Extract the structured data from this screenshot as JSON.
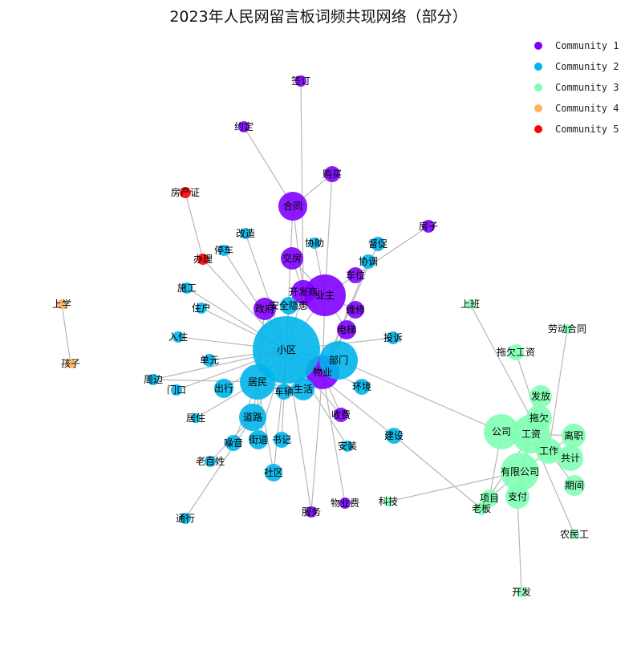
{
  "title": "2023年人民网留言板词频共现网络（部分）",
  "legend": [
    {
      "label": "Community 1",
      "color": "#8000ff"
    },
    {
      "label": "Community 2",
      "color": "#00b5eb"
    },
    {
      "label": "Community 3",
      "color": "#80ffb4"
    },
    {
      "label": "Community 4",
      "color": "#ffb360"
    },
    {
      "label": "Community 5",
      "color": "#ff0000"
    }
  ],
  "nodes": [
    {
      "id": "签订",
      "community": 1
    },
    {
      "id": "约定",
      "community": 1
    },
    {
      "id": "购买",
      "community": 1
    },
    {
      "id": "合同",
      "community": 1
    },
    {
      "id": "房子",
      "community": 1
    },
    {
      "id": "交房",
      "community": 1
    },
    {
      "id": "开发商",
      "community": 1
    },
    {
      "id": "业主",
      "community": 1
    },
    {
      "id": "车位",
      "community": 1
    },
    {
      "id": "政府",
      "community": 1
    },
    {
      "id": "维修",
      "community": 1
    },
    {
      "id": "电梯",
      "community": 1
    },
    {
      "id": "物业",
      "community": 1
    },
    {
      "id": "收费",
      "community": 1
    },
    {
      "id": "服务",
      "community": 1
    },
    {
      "id": "物业费",
      "community": 1
    },
    {
      "id": "房产证",
      "community": 5
    },
    {
      "id": "办理",
      "community": 5
    },
    {
      "id": "上学",
      "community": 4
    },
    {
      "id": "孩子",
      "community": 4
    },
    {
      "id": "改造",
      "community": 2
    },
    {
      "id": "停车",
      "community": 2
    },
    {
      "id": "协助",
      "community": 2
    },
    {
      "id": "督促",
      "community": 2
    },
    {
      "id": "协调",
      "community": 2
    },
    {
      "id": "施工",
      "community": 2
    },
    {
      "id": "住户",
      "community": 2
    },
    {
      "id": "安全隐患",
      "community": 2
    },
    {
      "id": "入住",
      "community": 2
    },
    {
      "id": "投诉",
      "community": 2
    },
    {
      "id": "小区",
      "community": 2
    },
    {
      "id": "单元",
      "community": 2
    },
    {
      "id": "部门",
      "community": 2
    },
    {
      "id": "周边",
      "community": 2
    },
    {
      "id": "门口",
      "community": 2
    },
    {
      "id": "居民",
      "community": 2
    },
    {
      "id": "出行",
      "community": 2
    },
    {
      "id": "车辆",
      "community": 2
    },
    {
      "id": "生活",
      "community": 2
    },
    {
      "id": "环境",
      "community": 2
    },
    {
      "id": "居住",
      "community": 2
    },
    {
      "id": "道路",
      "community": 2
    },
    {
      "id": "噪音",
      "community": 2
    },
    {
      "id": "街道",
      "community": 2
    },
    {
      "id": "书记",
      "community": 2
    },
    {
      "id": "安装",
      "community": 2
    },
    {
      "id": "建设",
      "community": 2
    },
    {
      "id": "老百姓",
      "community": 2
    },
    {
      "id": "社区",
      "community": 2
    },
    {
      "id": "通行",
      "community": 2
    },
    {
      "id": "上班",
      "community": 3
    },
    {
      "id": "劳动合同",
      "community": 3
    },
    {
      "id": "拖欠工资",
      "community": 3
    },
    {
      "id": "发放",
      "community": 3
    },
    {
      "id": "拖欠",
      "community": 3
    },
    {
      "id": "公司",
      "community": 3
    },
    {
      "id": "工资",
      "community": 3
    },
    {
      "id": "离职",
      "community": 3
    },
    {
      "id": "工作",
      "community": 3
    },
    {
      "id": "共计",
      "community": 3
    },
    {
      "id": "有限公司",
      "community": 3
    },
    {
      "id": "期间",
      "community": 3
    },
    {
      "id": "项目",
      "community": 3
    },
    {
      "id": "老板",
      "community": 3
    },
    {
      "id": "支付",
      "community": 3
    },
    {
      "id": "科技",
      "community": 3
    },
    {
      "id": "农民工",
      "community": 3
    },
    {
      "id": "开发",
      "community": 3
    }
  ],
  "edges": [
    [
      "签订",
      "开发商"
    ],
    [
      "约定",
      "合同"
    ],
    [
      "购买",
      "合同"
    ],
    [
      "购买",
      "业主"
    ],
    [
      "合同",
      "开发商"
    ],
    [
      "合同",
      "小区"
    ],
    [
      "交房",
      "开发商"
    ],
    [
      "交房",
      "业主"
    ],
    [
      "房子",
      "车位"
    ],
    [
      "开发商",
      "业主"
    ],
    [
      "开发商",
      "小区"
    ],
    [
      "业主",
      "小区"
    ],
    [
      "业主",
      "物业"
    ],
    [
      "业主",
      "车位"
    ],
    [
      "业主",
      "维修"
    ],
    [
      "业主",
      "电梯"
    ],
    [
      "物业",
      "小区"
    ],
    [
      "物业",
      "维修"
    ],
    [
      "物业",
      "电梯"
    ],
    [
      "物业",
      "收费"
    ],
    [
      "物业",
      "物业费"
    ],
    [
      "物业",
      "服务"
    ],
    [
      "物业",
      "部门"
    ],
    [
      "政府",
      "小区"
    ],
    [
      "政府",
      "居民"
    ],
    [
      "收费",
      "小区"
    ],
    [
      "服务",
      "小区"
    ],
    [
      "房产证",
      "办理"
    ],
    [
      "办理",
      "小区"
    ],
    [
      "上学",
      "孩子"
    ],
    [
      "改造",
      "小区"
    ],
    [
      "停车",
      "小区"
    ],
    [
      "协助",
      "业主"
    ],
    [
      "督促",
      "物业"
    ],
    [
      "协调",
      "物业"
    ],
    [
      "施工",
      "小区"
    ],
    [
      "住户",
      "小区"
    ],
    [
      "安全隐患",
      "小区"
    ],
    [
      "入住",
      "小区"
    ],
    [
      "投诉",
      "小区"
    ],
    [
      "单元",
      "小区"
    ],
    [
      "部门",
      "小区"
    ],
    [
      "周边",
      "小区"
    ],
    [
      "周边",
      "居民"
    ],
    [
      "门口",
      "小区"
    ],
    [
      "居民",
      "小区"
    ],
    [
      "出行",
      "小区"
    ],
    [
      "车辆",
      "小区"
    ],
    [
      "生活",
      "小区"
    ],
    [
      "环境",
      "小区"
    ],
    [
      "居住",
      "居民"
    ],
    [
      "道路",
      "小区"
    ],
    [
      "噪音",
      "居民"
    ],
    [
      "街道",
      "小区"
    ],
    [
      "书记",
      "小区"
    ],
    [
      "安装",
      "小区"
    ],
    [
      "建设",
      "小区"
    ],
    [
      "建设",
      "老板"
    ],
    [
      "老百姓",
      "道路"
    ],
    [
      "社区",
      "小区"
    ],
    [
      "通行",
      "道路"
    ],
    [
      "居民",
      "道路"
    ],
    [
      "居民",
      "生活"
    ],
    [
      "居民",
      "社区"
    ],
    [
      "居民",
      "街道"
    ],
    [
      "部门",
      "公司"
    ],
    [
      "上班",
      "工作"
    ],
    [
      "劳动合同",
      "工作"
    ],
    [
      "拖欠工资",
      "工作"
    ],
    [
      "发放",
      "工资"
    ],
    [
      "拖欠",
      "工资"
    ],
    [
      "公司",
      "工资"
    ],
    [
      "公司",
      "工作"
    ],
    [
      "公司",
      "拖欠"
    ],
    [
      "工资",
      "离职"
    ],
    [
      "工资",
      "共计"
    ],
    [
      "工资",
      "有限公司"
    ],
    [
      "工作",
      "有限公司"
    ],
    [
      "工作",
      "期间"
    ],
    [
      "有限公司",
      "支付"
    ],
    [
      "有限公司",
      "项目"
    ],
    [
      "有限公司",
      "科技"
    ],
    [
      "支付",
      "开发"
    ],
    [
      "工资",
      "农民工"
    ],
    [
      "工资",
      "老板"
    ],
    [
      "工资",
      "支付"
    ],
    [
      "公司",
      "项目"
    ],
    [
      "工作",
      "离职"
    ]
  ]
}
